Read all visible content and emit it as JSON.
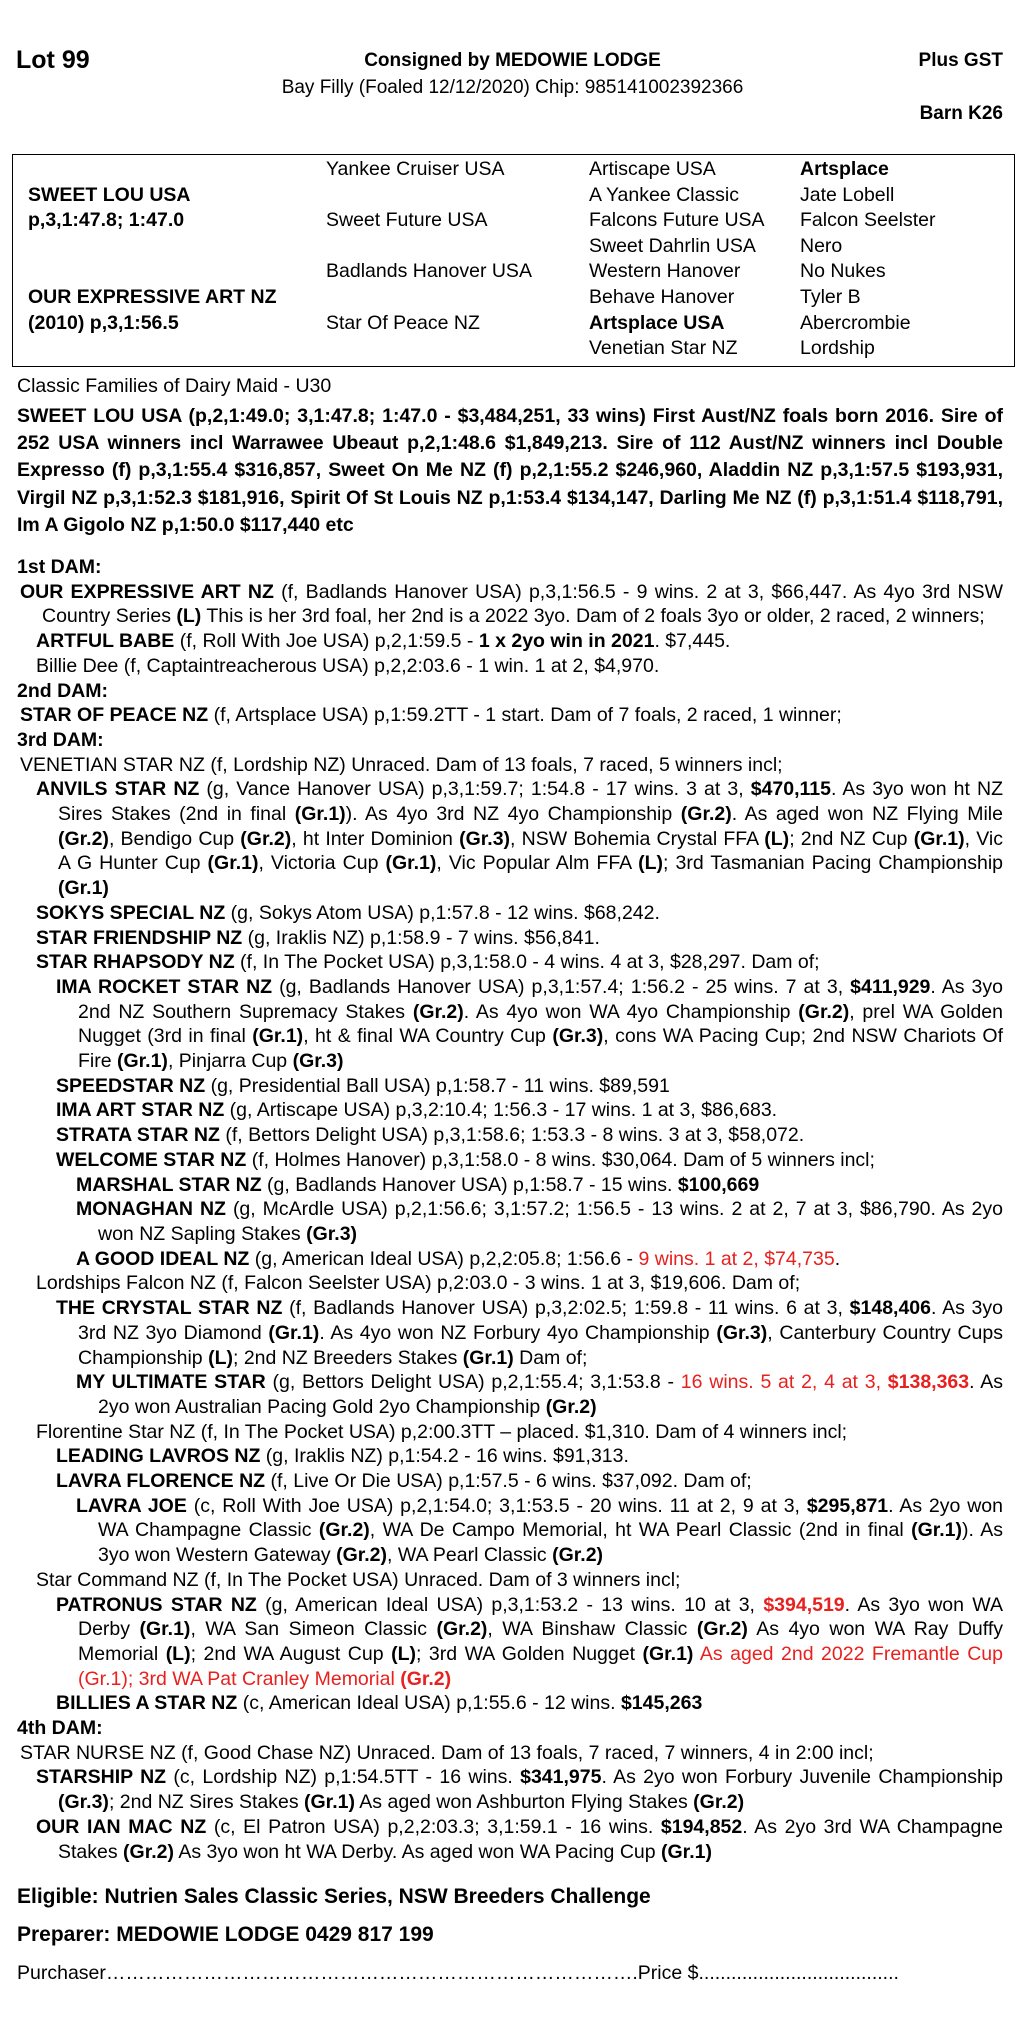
{
  "header": {
    "lot": "Lot 99",
    "consigned": "Consigned by MEDOWIE LODGE",
    "description": "Bay Filly (Foaled 12/12/2020) Chip: 985141002392366",
    "gst": "Plus GST",
    "barn": "Barn K26"
  },
  "pedigree": {
    "col1": [
      "",
      "SWEET LOU USA",
      "p,3,1:47.8; 1:47.0",
      "",
      "",
      "OUR EXPRESSIVE ART NZ",
      "(2010) p,3,1:56.5",
      ""
    ],
    "col2": [
      "Yankee Cruiser USA",
      "",
      "Sweet Future USA",
      "",
      "Badlands Hanover USA",
      "",
      "Star Of Peace NZ",
      ""
    ],
    "col3": [
      "Artiscape USA",
      "A Yankee Classic",
      "Falcons Future USA",
      "Sweet Dahrlin USA",
      "Western Hanover",
      "Behave Hanover",
      "Artsplace USA",
      "Venetian Star NZ"
    ],
    "col4": [
      "Artsplace",
      "Jate Lobell",
      "Falcon Seelster",
      "Nero",
      "No Nukes",
      "Tyler B",
      "Abercrombie",
      "Lordship"
    ],
    "bold": {
      "col1": [
        1,
        2,
        5,
        6
      ],
      "col2": [],
      "col3": [
        6
      ],
      "col4": [
        0
      ]
    }
  },
  "family": "Classic Families of Dairy Maid - U30",
  "sire_text": "SWEET LOU USA (p,2,1:49.0; 3,1:47.8; 1:47.0 - $3,484,251, 33 wins) First Aust/NZ foals born 2016. Sire of 252 USA winners incl Warrawee Ubeaut p,2,1:48.6 $1,849,213. Sire of 112 Aust/NZ winners incl Double Expresso (f) p,3,1:55.4 $316,857, Sweet On Me NZ (f) p,2,1:55.2 $246,960, Aladdin NZ p,3,1:57.5 $193,931, Virgil NZ p,3,1:52.3 $181,916, Spirit Of St Louis NZ p,1:53.4 $134,147, Darling Me NZ (f) p,3,1:51.4 $118,791, Im A Gigolo NZ p,1:50.0 $117,440 etc",
  "accent_red": "#e8201e",
  "dams": [
    {
      "hdr": "1st DAM:"
    },
    {
      "lvl": 0,
      "segs": [
        [
          "OUR EXPRESSIVE ART NZ",
          "b"
        ],
        [
          " (f, Badlands Hanover USA) p,3,1:56.5 - 9 wins. 2 at 3, $66,447. As 4yo 3rd NSW Country Series ",
          ""
        ],
        [
          "(L)",
          "b"
        ],
        [
          " This is her 3rd foal, her 2nd is a 2022 3yo. Dam of 2 foals 3yo or older, 2 raced, 2 winners;",
          ""
        ]
      ]
    },
    {
      "lvl": 1,
      "segs": [
        [
          "ARTFUL BABE",
          "b"
        ],
        [
          " (f, Roll With Joe USA) p,2,1:59.5 - ",
          ""
        ],
        [
          "1 x 2yo win in 2021",
          "b"
        ],
        [
          ". $7,445.",
          ""
        ]
      ]
    },
    {
      "lvl": 1,
      "segs": [
        [
          "Billie Dee (f, Captaintreacherous USA) p,2,2:03.6 - 1 win. 1 at 2, $4,970.",
          ""
        ]
      ]
    },
    {
      "hdr": "2nd DAM:"
    },
    {
      "lvl": 0,
      "segs": [
        [
          "STAR OF PEACE NZ",
          "b"
        ],
        [
          " (f, Artsplace USA) p,1:59.2TT - 1 start. Dam of 7 foals, 2 raced, 1 winner;",
          ""
        ]
      ]
    },
    {
      "hdr": "3rd DAM:"
    },
    {
      "lvl": 0,
      "segs": [
        [
          "VENETIAN STAR NZ (f, Lordship NZ) Unraced. Dam of 13 foals, 7 raced, 5 winners incl;",
          ""
        ]
      ]
    },
    {
      "lvl": 1,
      "segs": [
        [
          "ANVILS STAR NZ",
          "b"
        ],
        [
          " (g, Vance Hanover USA) p,3,1:59.7; 1:54.8 - 17 wins. 3 at 3, ",
          ""
        ],
        [
          "$470,115",
          "b"
        ],
        [
          ". As 3yo won ht NZ Sires Stakes (2nd in final ",
          ""
        ],
        [
          "(Gr.1)",
          "b"
        ],
        [
          "). As 4yo 3rd NZ 4yo Championship ",
          ""
        ],
        [
          "(Gr.2)",
          "b"
        ],
        [
          ". As aged won NZ Flying Mile ",
          ""
        ],
        [
          "(Gr.2)",
          "b"
        ],
        [
          ", Bendigo Cup ",
          ""
        ],
        [
          "(Gr.2)",
          "b"
        ],
        [
          ", ht Inter Dominion ",
          ""
        ],
        [
          "(Gr.3)",
          "b"
        ],
        [
          ", NSW Bohemia Crystal FFA ",
          ""
        ],
        [
          "(L)",
          "b"
        ],
        [
          "; 2nd NZ Cup ",
          ""
        ],
        [
          "(Gr.1)",
          "b"
        ],
        [
          ", Vic A G Hunter Cup ",
          ""
        ],
        [
          "(Gr.1)",
          "b"
        ],
        [
          ", Victoria Cup ",
          ""
        ],
        [
          "(Gr.1)",
          "b"
        ],
        [
          ", Vic Popular Alm FFA ",
          ""
        ],
        [
          "(L)",
          "b"
        ],
        [
          "; 3rd Tasmanian Pacing Championship ",
          ""
        ],
        [
          "(Gr.1)",
          "b"
        ]
      ]
    },
    {
      "lvl": 1,
      "segs": [
        [
          "SOKYS SPECIAL NZ",
          "b"
        ],
        [
          " (g, Sokys Atom USA) p,1:57.8 - 12 wins. $68,242.",
          ""
        ]
      ]
    },
    {
      "lvl": 1,
      "segs": [
        [
          "STAR FRIENDSHIP NZ",
          "b"
        ],
        [
          " (g, Iraklis NZ) p,1:58.9 - 7 wins. $56,841.",
          ""
        ]
      ]
    },
    {
      "lvl": 1,
      "segs": [
        [
          "STAR RHAPSODY NZ",
          "b"
        ],
        [
          " (f, In The Pocket USA) p,3,1:58.0 - 4 wins. 4 at 3, $28,297. Dam of;",
          ""
        ]
      ]
    },
    {
      "lvl": 2,
      "segs": [
        [
          "IMA ROCKET STAR NZ",
          "b"
        ],
        [
          " (g, Badlands Hanover USA) p,3,1:57.4; 1:56.2 - 25 wins. 7 at 3, ",
          ""
        ],
        [
          "$411,929",
          "b"
        ],
        [
          ". As 3yo 2nd NZ Southern Supremacy Stakes ",
          ""
        ],
        [
          "(Gr.2)",
          "b"
        ],
        [
          ". As 4yo won WA 4yo Championship ",
          ""
        ],
        [
          "(Gr.2)",
          "b"
        ],
        [
          ", prel WA Golden Nugget (3rd in final ",
          ""
        ],
        [
          "(Gr.1)",
          "b"
        ],
        [
          ", ht & final WA Country Cup ",
          ""
        ],
        [
          "(Gr.3)",
          "b"
        ],
        [
          ", cons WA Pacing Cup; 2nd NSW Chariots Of Fire ",
          ""
        ],
        [
          "(Gr.1)",
          "b"
        ],
        [
          ", Pinjarra Cup ",
          ""
        ],
        [
          "(Gr.3)",
          "b"
        ]
      ]
    },
    {
      "lvl": 2,
      "segs": [
        [
          "SPEEDSTAR NZ",
          "b"
        ],
        [
          " (g, Presidential Ball USA) p,1:58.7 - 11 wins. $89,591",
          ""
        ]
      ]
    },
    {
      "lvl": 2,
      "segs": [
        [
          "IMA ART STAR NZ",
          "b"
        ],
        [
          " (g, Artiscape USA) p,3,2:10.4; 1:56.3 - 17 wins. 1 at 3, $86,683.",
          ""
        ]
      ]
    },
    {
      "lvl": 2,
      "segs": [
        [
          "STRATA STAR NZ",
          "b"
        ],
        [
          " (f, Bettors Delight USA) p,3,1:58.6; 1:53.3 - 8 wins. 3 at 3, $58,072.",
          ""
        ]
      ]
    },
    {
      "lvl": 2,
      "segs": [
        [
          "WELCOME STAR NZ",
          "b"
        ],
        [
          " (f, Holmes Hanover) p,3,1:58.0 - 8 wins. $30,064. Dam of 5 winners incl;",
          ""
        ]
      ]
    },
    {
      "lvl": 3,
      "segs": [
        [
          "MARSHAL STAR NZ",
          "b"
        ],
        [
          " (g, Badlands Hanover USA) p,1:58.7 - 15 wins. ",
          ""
        ],
        [
          "$100,669",
          "b"
        ]
      ]
    },
    {
      "lvl": 3,
      "segs": [
        [
          "MONAGHAN NZ",
          "b"
        ],
        [
          " (g, McArdle USA) p,2,1:56.6; 3,1:57.2; 1:56.5 - 13 wins. 2 at 2, 7 at 3, $86,790. As 2yo won NZ Sapling Stakes ",
          ""
        ],
        [
          "(Gr.3)",
          "b"
        ]
      ]
    },
    {
      "lvl": 3,
      "segs": [
        [
          "A GOOD IDEAL NZ",
          "b"
        ],
        [
          " (g, American Ideal USA) p,2,2:05.8; 1:56.6 - ",
          ""
        ],
        [
          "9 wins. 1 at 2, $74,735",
          "r"
        ],
        [
          ".",
          ""
        ]
      ]
    },
    {
      "lvl": 1,
      "segs": [
        [
          "Lordships Falcon NZ (f, Falcon Seelster USA) p,2:03.0 - 3 wins. 1 at 3, $19,606. Dam of;",
          ""
        ]
      ]
    },
    {
      "lvl": 2,
      "segs": [
        [
          "THE CRYSTAL STAR NZ",
          "b"
        ],
        [
          " (f, Badlands Hanover USA) p,3,2:02.5; 1:59.8 - 11 wins. 6 at 3, ",
          ""
        ],
        [
          "$148,406",
          "b"
        ],
        [
          ". As 3yo 3rd NZ 3yo Diamond ",
          ""
        ],
        [
          "(Gr.1)",
          "b"
        ],
        [
          ". As 4yo won NZ Forbury 4yo Championship ",
          ""
        ],
        [
          "(Gr.3)",
          "b"
        ],
        [
          ", Canterbury Country Cups Championship ",
          ""
        ],
        [
          "(L)",
          "b"
        ],
        [
          "; 2nd NZ Breeders Stakes ",
          ""
        ],
        [
          "(Gr.1)",
          "b"
        ],
        [
          " Dam of;",
          ""
        ]
      ]
    },
    {
      "lvl": 3,
      "segs": [
        [
          "MY ULTIMATE STAR",
          "b"
        ],
        [
          " (g, Bettors Delight USA) p,2,1:55.4; 3,1:53.8 - ",
          ""
        ],
        [
          "16 wins. 5 at 2, 4 at 3, ",
          "r"
        ],
        [
          "$138,363",
          "rb"
        ],
        [
          ". As 2yo won Australian Pacing Gold 2yo Championship ",
          ""
        ],
        [
          "(Gr.2)",
          "b"
        ]
      ]
    },
    {
      "lvl": 1,
      "segs": [
        [
          "Florentine Star NZ (f, In The Pocket USA) p,2:00.3TT – placed. $1,310. Dam of 4 winners incl;",
          ""
        ]
      ]
    },
    {
      "lvl": 2,
      "segs": [
        [
          "LEADING LAVROS NZ",
          "b"
        ],
        [
          " (g, Iraklis NZ) p,1:54.2 - 16 wins. $91,313.",
          ""
        ]
      ]
    },
    {
      "lvl": 2,
      "segs": [
        [
          "LAVRA FLORENCE NZ",
          "b"
        ],
        [
          " (f, Live Or Die USA) p,1:57.5 - 6 wins. $37,092. Dam of;",
          ""
        ]
      ]
    },
    {
      "lvl": 3,
      "segs": [
        [
          "LAVRA JOE",
          "b"
        ],
        [
          " (c, Roll With Joe USA) p,2,1:54.0; 3,1:53.5 - 20 wins. 11 at 2, 9 at 3, ",
          ""
        ],
        [
          "$295,871",
          "b"
        ],
        [
          ". As 2yo won WA Champagne Classic ",
          ""
        ],
        [
          "(Gr.2)",
          "b"
        ],
        [
          ", WA De Campo Memorial, ht WA Pearl Classic (2nd in final ",
          ""
        ],
        [
          "(Gr.1)",
          "b"
        ],
        [
          "). As 3yo won Western Gateway ",
          ""
        ],
        [
          "(Gr.2)",
          "b"
        ],
        [
          ", WA Pearl Classic ",
          ""
        ],
        [
          "(Gr.2)",
          "b"
        ]
      ]
    },
    {
      "lvl": 1,
      "segs": [
        [
          "Star Command NZ (f, In The Pocket USA) Unraced. Dam of 3 winners incl;",
          ""
        ]
      ]
    },
    {
      "lvl": 2,
      "segs": [
        [
          "PATRONUS STAR NZ",
          "b"
        ],
        [
          " (g, American Ideal USA) p,3,1:53.2 - 13 wins. 10 at 3, ",
          ""
        ],
        [
          "$394,519",
          "rb"
        ],
        [
          ". As 3yo won WA Derby ",
          ""
        ],
        [
          "(Gr.1)",
          "b"
        ],
        [
          ", WA San Simeon Classic ",
          ""
        ],
        [
          "(Gr.2)",
          "b"
        ],
        [
          ", WA Binshaw Classic ",
          ""
        ],
        [
          "(Gr.2)",
          "b"
        ],
        [
          " As 4yo won WA Ray Duffy Memorial ",
          ""
        ],
        [
          "(L)",
          "b"
        ],
        [
          "; 2nd WA August Cup ",
          ""
        ],
        [
          "(L)",
          "b"
        ],
        [
          "; 3rd WA Golden Nugget ",
          ""
        ],
        [
          "(Gr.1)",
          "b"
        ],
        [
          " As aged 2nd 2022 Fremantle Cup (Gr.1); 3rd WA Pat Cranley Memorial ",
          "r"
        ],
        [
          "(Gr.2)",
          "rb"
        ]
      ]
    },
    {
      "lvl": 2,
      "segs": [
        [
          "BILLIES A STAR NZ",
          "b"
        ],
        [
          " (c, American Ideal USA) p,1:55.6 - 12 wins. ",
          ""
        ],
        [
          "$145,263",
          "b"
        ]
      ]
    },
    {
      "hdr": "4th DAM:"
    },
    {
      "lvl": 0,
      "segs": [
        [
          "STAR NURSE NZ (f, Good Chase NZ) Unraced. Dam of 13 foals, 7 raced, 7 winners, 4 in 2:00 incl;",
          ""
        ]
      ]
    },
    {
      "lvl": 1,
      "segs": [
        [
          "STARSHIP NZ",
          "b"
        ],
        [
          " (c, Lordship NZ) p,1:54.5TT - 16 wins. ",
          ""
        ],
        [
          "$341,975",
          "b"
        ],
        [
          ". As 2yo won Forbury Juvenile Championship ",
          ""
        ],
        [
          "(Gr.3)",
          "b"
        ],
        [
          "; 2nd NZ Sires Stakes ",
          ""
        ],
        [
          "(Gr.1)",
          "b"
        ],
        [
          " As aged won Ashburton Flying Stakes ",
          ""
        ],
        [
          "(Gr.2)",
          "b"
        ]
      ]
    },
    {
      "lvl": 1,
      "segs": [
        [
          "OUR IAN MAC NZ",
          "b"
        ],
        [
          " (c, El Patron USA) p,2,2:03.3; 3,1:59.1 - 16 wins. ",
          ""
        ],
        [
          "$194,852",
          "b"
        ],
        [
          ". As 2yo 3rd WA Champagne Stakes ",
          ""
        ],
        [
          "(Gr.2)",
          "b"
        ],
        [
          " As 3yo won ht WA Derby. As aged won WA Pacing Cup ",
          ""
        ],
        [
          "(Gr.1)",
          "b"
        ]
      ]
    }
  ],
  "footer": {
    "eligible": "Eligible: Nutrien Sales Classic Series, NSW Breeders Challenge",
    "preparer": "Preparer: MEDOWIE LODGE 0429 817 199",
    "purchaser": "Purchaser……………………………………………………………………….Price $....................................."
  }
}
